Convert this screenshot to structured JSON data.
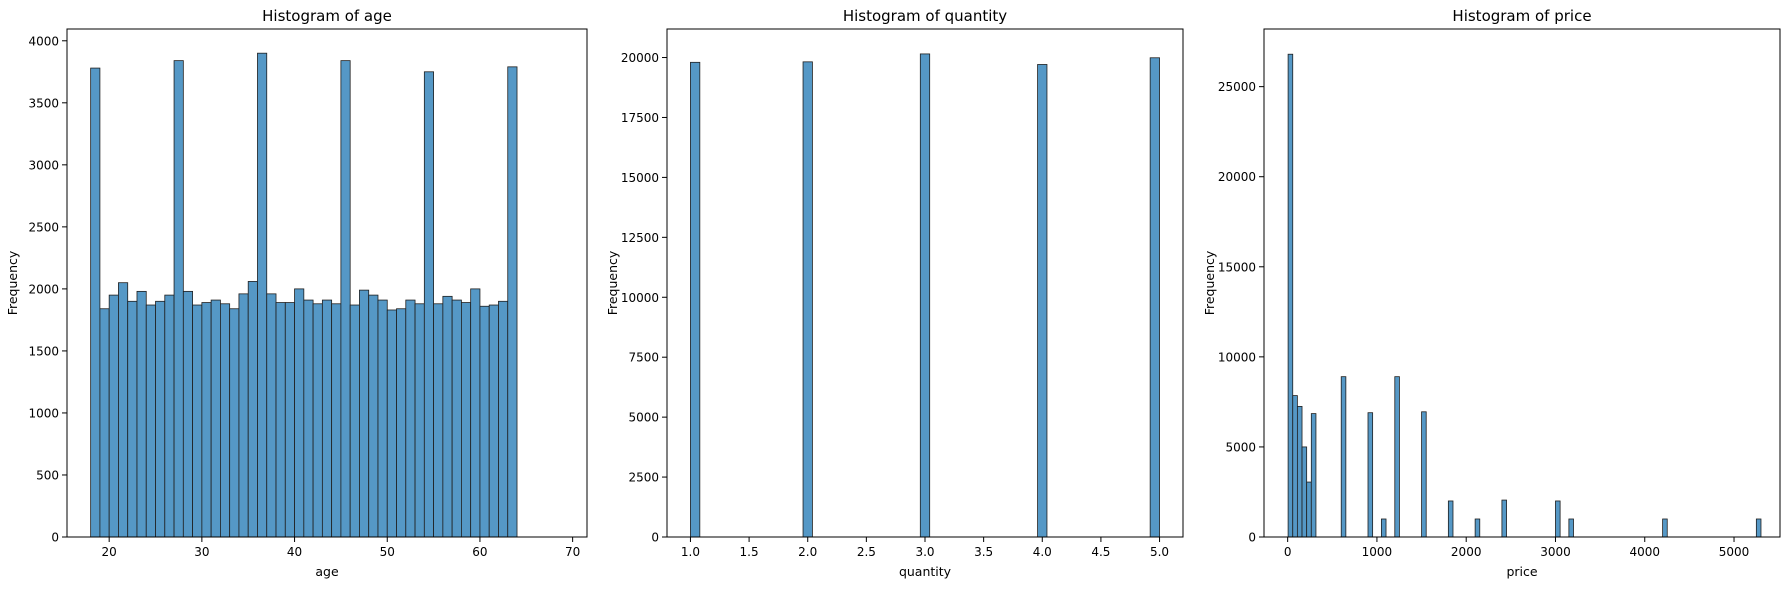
{
  "chart_data": [
    {
      "type": "bar",
      "title": "Histogram of age",
      "xlabel": "age",
      "ylabel": "Frequency",
      "bar_color": "#5598c6",
      "edge_color": "#1f1f1f",
      "xlim": [
        15.45,
        71.55
      ],
      "ylim": [
        0,
        4095
      ],
      "xticks": [
        20,
        30,
        40,
        50,
        60,
        70
      ],
      "yticks": [
        0,
        500,
        1000,
        1500,
        2000,
        2500,
        3000,
        3500,
        4000
      ],
      "bin_start": 18,
      "bin_width": 1.0,
      "values": [
        3780,
        1840,
        1950,
        2050,
        1900,
        1980,
        1870,
        1900,
        1950,
        3840,
        1980,
        1870,
        1890,
        1910,
        1880,
        1840,
        1960,
        2060,
        3900,
        1960,
        1890,
        1890,
        2000,
        1910,
        1880,
        1910,
        1880,
        3840,
        1870,
        1990,
        1950,
        1910,
        1830,
        1840,
        1910,
        1880,
        3750,
        1880,
        1940,
        1910,
        1890,
        2000,
        1860,
        1870,
        1900,
        3790
      ]
    },
    {
      "type": "bar",
      "title": "Histogram of quantity",
      "xlabel": "quantity",
      "ylabel": "Frequency",
      "bar_color": "#5598c6",
      "edge_color": "#1f1f1f",
      "xlim": [
        0.8,
        5.2
      ],
      "ylim": [
        0,
        21190
      ],
      "xticks": [
        1.0,
        1.5,
        2.0,
        2.5,
        3.0,
        3.5,
        4.0,
        4.5,
        5.0
      ],
      "yticks": [
        0,
        2500,
        5000,
        7500,
        10000,
        12500,
        15000,
        17500,
        20000
      ],
      "bars": [
        {
          "x0": 1.0,
          "x1": 1.08,
          "value": 19800
        },
        {
          "x0": 1.96,
          "x1": 2.04,
          "value": 19820
        },
        {
          "x0": 2.96,
          "x1": 3.04,
          "value": 20150
        },
        {
          "x0": 3.96,
          "x1": 4.04,
          "value": 19710
        },
        {
          "x0": 4.92,
          "x1": 5.0,
          "value": 19990
        }
      ]
    },
    {
      "type": "bar",
      "title": "Histogram of price",
      "xlabel": "price",
      "ylabel": "Frequency",
      "bar_color": "#5598c6",
      "edge_color": "#1f1f1f",
      "xlim": [
        -265,
        5515
      ],
      "ylim": [
        0,
        28200
      ],
      "xticks": [
        0,
        1000,
        2000,
        3000,
        4000,
        5000
      ],
      "yticks": [
        0,
        5000,
        10000,
        15000,
        20000,
        25000
      ],
      "bar_width": 52,
      "bars": [
        {
          "x": 5,
          "value": 26800
        },
        {
          "x": 57,
          "value": 7850
        },
        {
          "x": 109,
          "value": 7250
        },
        {
          "x": 161,
          "value": 5000
        },
        {
          "x": 213,
          "value": 3050
        },
        {
          "x": 265,
          "value": 6850
        },
        {
          "x": 600,
          "value": 8900
        },
        {
          "x": 900,
          "value": 6900
        },
        {
          "x": 1050,
          "value": 1000
        },
        {
          "x": 1200,
          "value": 8900
        },
        {
          "x": 1500,
          "value": 6950
        },
        {
          "x": 1800,
          "value": 2000
        },
        {
          "x": 2100,
          "value": 1000
        },
        {
          "x": 2400,
          "value": 2050
        },
        {
          "x": 3000,
          "value": 2000
        },
        {
          "x": 3150,
          "value": 1000
        },
        {
          "x": 4200,
          "value": 1000
        },
        {
          "x": 5250,
          "value": 1000
        }
      ]
    }
  ]
}
